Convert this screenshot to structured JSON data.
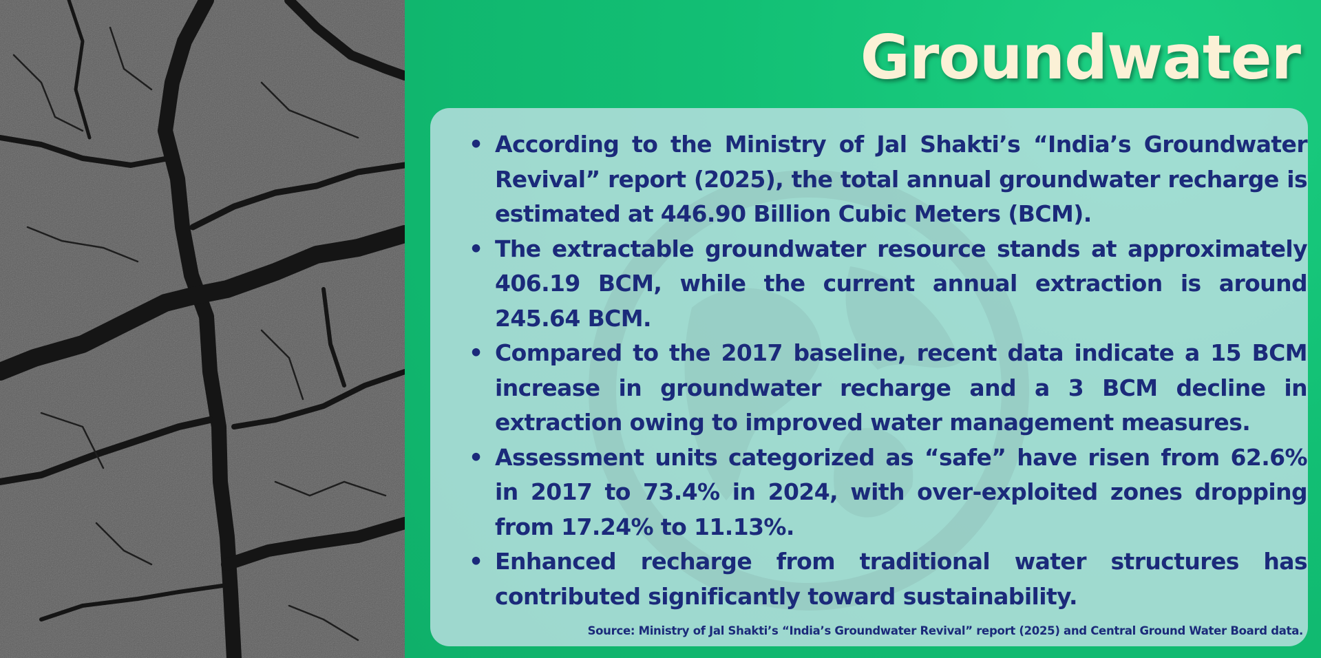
{
  "slide": {
    "title": "Groundwater",
    "bullets": [
      "According to the Ministry of Jal Shakti’s “India’s Groundwater Revival” report (2025), the total annual groundwater recharge is estimated at 446.90 Billion Cubic Meters (BCM).",
      "The extractable groundwater resource stands at approximately 406.19 BCM, while the current annual extraction is around 245.64 BCM.",
      "Compared to the 2017 baseline, recent data indicate a 15 BCM increase in groundwater recharge and a 3 BCM decline in extraction owing to improved water management measures.",
      "Assessment units categorized as “safe” have risen from 62.6% in 2017 to 73.4% in 2024, with over-exploited zones dropping from 17.24% to 11.13%.",
      "Enhanced recharge from traditional water structures has contributed significantly toward sustainability."
    ],
    "source": "Source: Ministry of Jal Shakti’s “India’s Groundwater Revival” report (2025) and Central Ground Water Board data."
  },
  "icons": {
    "photo": "cracked-earth-image",
    "watermark": "globe-icon",
    "bullet": "bullet-dot-icon"
  },
  "colors": {
    "background_green": "#12bf74",
    "title": "#fbf1d6",
    "text_navy": "#1b2a7a",
    "card": "#bee1e4"
  }
}
